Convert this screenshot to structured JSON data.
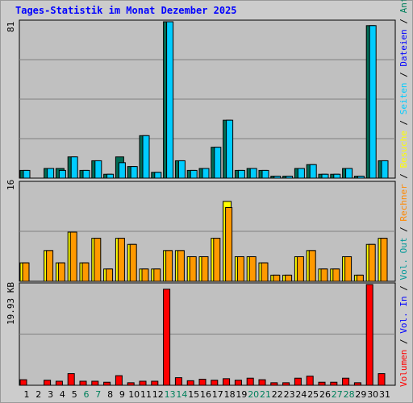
{
  "title": "Tages-Statistik im Monat Dezember 2025",
  "colors": {
    "anfragen": "#006b54",
    "dateien": "#00ccff",
    "seiten": "#00c0ff",
    "besuche": "#ffff00",
    "rechner": "#ff9900",
    "volumen": "#ff0000",
    "weekend_label": "#00805c",
    "panel_bg": "#c0c0c0"
  },
  "legend": {
    "top": [
      {
        "text": "Anfragen",
        "color": "#00805c"
      },
      {
        "text": "Dateien",
        "color": "#0000ff"
      },
      {
        "text": "Seiten",
        "color": "#00ccff"
      },
      {
        "text": "Besuche",
        "color": "#ffff00"
      },
      {
        "text": "Rechner",
        "color": "#ff8800"
      },
      {
        "text": "Vol. Out",
        "color": "#009999"
      },
      {
        "text": "Vol. In",
        "color": "#0000ff"
      },
      {
        "text": "Volumen",
        "color": "#ff0000"
      }
    ],
    "sep": " / "
  },
  "chart_data": [
    {
      "type": "bar",
      "name": "hits-files-pages",
      "ymax_label": "81",
      "ylim": [
        0,
        81
      ],
      "categories": [
        "1",
        "2",
        "3",
        "4",
        "5",
        "6",
        "7",
        "8",
        "9",
        "10",
        "11",
        "12",
        "13",
        "14",
        "15",
        "16",
        "17",
        "18",
        "19",
        "20",
        "21",
        "22",
        "23",
        "24",
        "25",
        "26",
        "27",
        "28",
        "29",
        "30",
        "31"
      ],
      "series": [
        {
          "name": "Anfragen",
          "values": [
            4,
            0,
            5,
            5,
            11,
            4,
            9,
            2,
            11,
            6,
            22,
            3,
            81,
            9,
            4,
            5,
            16,
            30,
            4,
            5,
            4,
            1,
            1,
            5,
            7,
            2,
            2,
            5,
            1,
            79,
            9
          ]
        },
        {
          "name": "Dateien",
          "values": [
            4,
            0,
            5,
            4,
            11,
            4,
            9,
            2,
            8,
            6,
            22,
            3,
            81,
            9,
            4,
            5,
            16,
            30,
            4,
            5,
            4,
            1,
            1,
            5,
            7,
            2,
            2,
            5,
            1,
            79,
            9
          ]
        }
      ]
    },
    {
      "type": "bar",
      "name": "visits-sites",
      "ymax_label": "16",
      "ylim": [
        0,
        16
      ],
      "series": [
        {
          "name": "Besuche",
          "values": [
            3,
            0,
            5,
            3,
            8,
            3,
            7,
            2,
            7,
            6,
            2,
            2,
            5,
            5,
            4,
            4,
            7,
            13,
            4,
            4,
            3,
            1,
            1,
            4,
            5,
            2,
            2,
            4,
            1,
            6,
            7
          ]
        },
        {
          "name": "Rechner",
          "values": [
            3,
            0,
            5,
            3,
            8,
            3,
            7,
            2,
            7,
            6,
            2,
            2,
            5,
            5,
            4,
            4,
            7,
            12,
            4,
            4,
            3,
            1,
            1,
            4,
            5,
            2,
            2,
            4,
            1,
            6,
            7
          ]
        }
      ]
    },
    {
      "type": "bar",
      "name": "volume",
      "ymax_label": "19.93 KB",
      "ylim": [
        0,
        19.93
      ],
      "series": [
        {
          "name": "Volumen",
          "values": [
            1.1,
            0,
            1.0,
            0.8,
            2.3,
            0.8,
            0.8,
            0.6,
            1.9,
            0.5,
            0.8,
            0.8,
            19.0,
            1.5,
            0.9,
            1.2,
            1.0,
            1.3,
            1.0,
            1.4,
            1.1,
            0.5,
            0.5,
            1.4,
            1.8,
            0.6,
            0.6,
            1.4,
            0.5,
            19.93,
            2.3
          ]
        }
      ]
    }
  ]
}
